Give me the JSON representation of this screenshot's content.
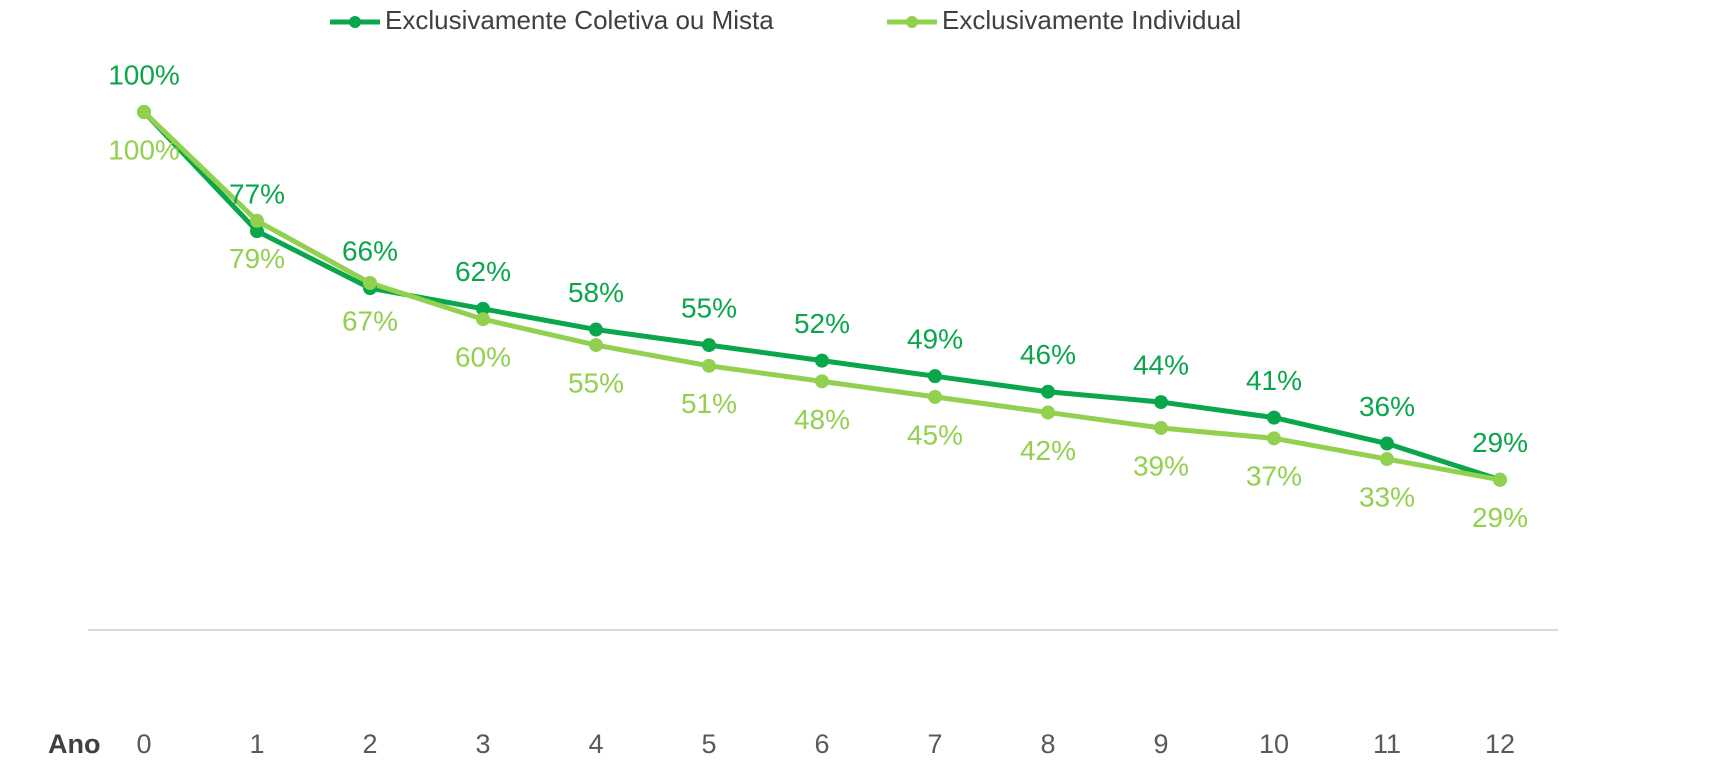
{
  "chart_data": {
    "type": "line",
    "x_label": "Ano",
    "categories": [
      "0",
      "1",
      "2",
      "3",
      "4",
      "5",
      "6",
      "7",
      "8",
      "9",
      "10",
      "11",
      "12"
    ],
    "ylim": [
      0,
      100
    ],
    "legend": "top",
    "series": [
      {
        "name": "Exclusivamente Coletiva ou Mista",
        "color": "#0aa64b",
        "values": [
          100,
          77,
          66,
          62,
          58,
          55,
          52,
          49,
          46,
          44,
          41,
          36,
          29
        ],
        "value_labels": [
          "100%",
          "77%",
          "66%",
          "62%",
          "58%",
          "55%",
          "52%",
          "49%",
          "46%",
          "44%",
          "41%",
          "36%",
          "29%"
        ]
      },
      {
        "name": "Exclusivamente Individual",
        "color": "#92d050",
        "values": [
          100,
          79,
          67,
          60,
          55,
          51,
          48,
          45,
          42,
          39,
          37,
          33,
          29
        ],
        "value_labels": [
          "100%",
          "79%",
          "67%",
          "60%",
          "55%",
          "51%",
          "48%",
          "45%",
          "42%",
          "39%",
          "37%",
          "33%",
          "29%"
        ]
      }
    ]
  }
}
